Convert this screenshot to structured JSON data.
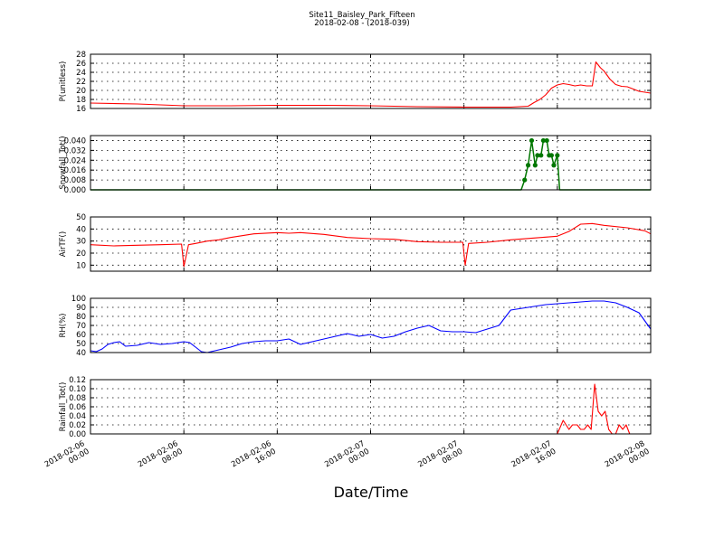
{
  "figure": {
    "title_line1": "Site11_Baisley_Park_Fifteen",
    "title_line2": "2018-02-08 - (2018-039)",
    "xlabel": "Date/Time",
    "x_ticks": [
      {
        "hours": 0,
        "line1": "2018-02-06",
        "line2": "00:00"
      },
      {
        "hours": 8,
        "line1": "2018-02-06",
        "line2": "08:00"
      },
      {
        "hours": 16,
        "line1": "2018-02-06",
        "line2": "16:00"
      },
      {
        "hours": 24,
        "line1": "2018-02-07",
        "line2": "00:00"
      },
      {
        "hours": 32,
        "line1": "2018-02-07",
        "line2": "08:00"
      },
      {
        "hours": 40,
        "line1": "2018-02-07",
        "line2": "16:00"
      },
      {
        "hours": 48,
        "line1": "2018-02-08",
        "line2": "00:00"
      }
    ],
    "x_range_hours": [
      0,
      48
    ]
  },
  "chart_data": [
    {
      "type": "line",
      "ylabel": "P(unitless)",
      "ylim": [
        16,
        28
      ],
      "yticks": [
        16,
        18,
        20,
        22,
        24,
        26,
        28
      ],
      "color": "#ff0000",
      "markers": false,
      "grid": true,
      "x": [
        0,
        4,
        8,
        12,
        16,
        20,
        24,
        28,
        32,
        36,
        37.5,
        38,
        38.5,
        39,
        39.5,
        40,
        40.5,
        41,
        41.5,
        42,
        42.5,
        43,
        43.3,
        43.7,
        44,
        44.5,
        45,
        45.5,
        46,
        46.5,
        47,
        48
      ],
      "y": [
        17.2,
        17,
        16.6,
        16.6,
        16.7,
        16.7,
        16.6,
        16.4,
        16.3,
        16.3,
        16.5,
        17.3,
        18,
        19,
        20.5,
        21.2,
        21.5,
        21.3,
        21,
        21.2,
        21,
        21,
        26.3,
        25,
        24.3,
        22.5,
        21.3,
        20.9,
        20.8,
        20.3,
        19.8,
        19.4
      ]
    },
    {
      "type": "line",
      "ylabel": "Snowfall_Tot()",
      "ylim": [
        0,
        0.044
      ],
      "yticks": [
        "0.000",
        "0.008",
        "0.016",
        "0.024",
        "0.032",
        "0.040"
      ],
      "color": "#007700",
      "markers": true,
      "grid": true,
      "x": [
        0,
        36.9,
        37.2,
        37.5,
        37.8,
        38.1,
        38.3,
        38.6,
        38.8,
        39.1,
        39.3,
        39.5,
        39.7,
        40,
        40.2,
        40.3,
        48
      ],
      "y": [
        0,
        0,
        0.008,
        0.02,
        0.04,
        0.02,
        0.028,
        0.028,
        0.04,
        0.04,
        0.028,
        0.028,
        0.02,
        0.028,
        0,
        0,
        0
      ],
      "marker_x": [
        37.2,
        37.5,
        37.8,
        38.1,
        38.3,
        38.6,
        38.8,
        39.1,
        39.3,
        39.5,
        39.7,
        40
      ],
      "marker_y": [
        0.008,
        0.02,
        0.04,
        0.02,
        0.028,
        0.028,
        0.04,
        0.04,
        0.028,
        0.028,
        0.02,
        0.028
      ]
    },
    {
      "type": "line",
      "ylabel": "AirTF()",
      "ylim": [
        5,
        50
      ],
      "yticks": [
        10,
        20,
        30,
        40,
        50
      ],
      "color": "#ff0000",
      "markers": false,
      "grid": true,
      "x": [
        0,
        2,
        4,
        6,
        7.8,
        8,
        8.4,
        9,
        10,
        11,
        12,
        14,
        16,
        17,
        18,
        20,
        22,
        24,
        26,
        28,
        30,
        31.9,
        32.1,
        32.4,
        34,
        36,
        38,
        40,
        41,
        42,
        43,
        44,
        46,
        47.5,
        48
      ],
      "y": [
        27,
        26,
        26.5,
        27,
        27.5,
        9,
        27,
        28,
        30,
        31,
        33,
        36,
        37,
        36.5,
        37,
        35.5,
        33,
        32,
        31.5,
        29.5,
        29,
        29,
        10,
        28,
        29,
        31,
        32.5,
        34,
        38,
        44,
        44.5,
        43,
        41,
        38.5,
        36
      ]
    },
    {
      "type": "line",
      "ylabel": "RH(%)",
      "ylim": [
        40,
        100
      ],
      "yticks": [
        40,
        50,
        60,
        70,
        80,
        90,
        100
      ],
      "color": "#0000ff",
      "markers": false,
      "grid": true,
      "x": [
        0,
        0.5,
        1,
        1.5,
        2,
        2.5,
        3,
        4,
        5,
        6,
        7,
        8,
        8.5,
        9,
        9.5,
        10,
        11,
        12,
        13,
        14,
        15,
        16,
        17,
        18,
        19,
        20,
        21,
        22,
        23,
        24,
        25,
        26,
        27,
        28,
        29,
        30,
        31,
        32,
        33,
        34,
        35,
        36,
        37,
        38,
        39,
        40,
        41,
        42,
        43,
        44,
        45,
        46,
        47,
        48
      ],
      "y": [
        42,
        41,
        44,
        49,
        51,
        52,
        47,
        48,
        51,
        49,
        50,
        52,
        51,
        46,
        41,
        40,
        43,
        46,
        50,
        52,
        53,
        53,
        55,
        49,
        52,
        55,
        58,
        61,
        58,
        60,
        56,
        58,
        63,
        67,
        70,
        64,
        63,
        63,
        62,
        66,
        70,
        87,
        89,
        91,
        93,
        94,
        95,
        96,
        97,
        97,
        95,
        90,
        84,
        66
      ]
    },
    {
      "type": "line",
      "ylabel": "Rainfall_Tot()",
      "ylim": [
        0,
        0.12
      ],
      "yticks": [
        "0.00",
        "0.02",
        "0.04",
        "0.06",
        "0.08",
        "0.10",
        "0.12"
      ],
      "color": "#ff0000",
      "markers": false,
      "grid": true,
      "x": [
        0,
        40,
        40.5,
        41,
        41.3,
        41.7,
        42,
        42.3,
        42.6,
        42.9,
        43.2,
        43.5,
        43.8,
        44.1,
        44.4,
        44.7,
        45,
        45.3,
        45.6,
        45.9,
        46.2,
        46.5,
        48
      ],
      "y": [
        0,
        0,
        0.03,
        0.01,
        0.02,
        0.02,
        0.01,
        0.01,
        0.02,
        0.01,
        0.11,
        0.05,
        0.04,
        0.05,
        0.01,
        0,
        0,
        0.02,
        0.01,
        0.02,
        0,
        0,
        0
      ]
    }
  ]
}
